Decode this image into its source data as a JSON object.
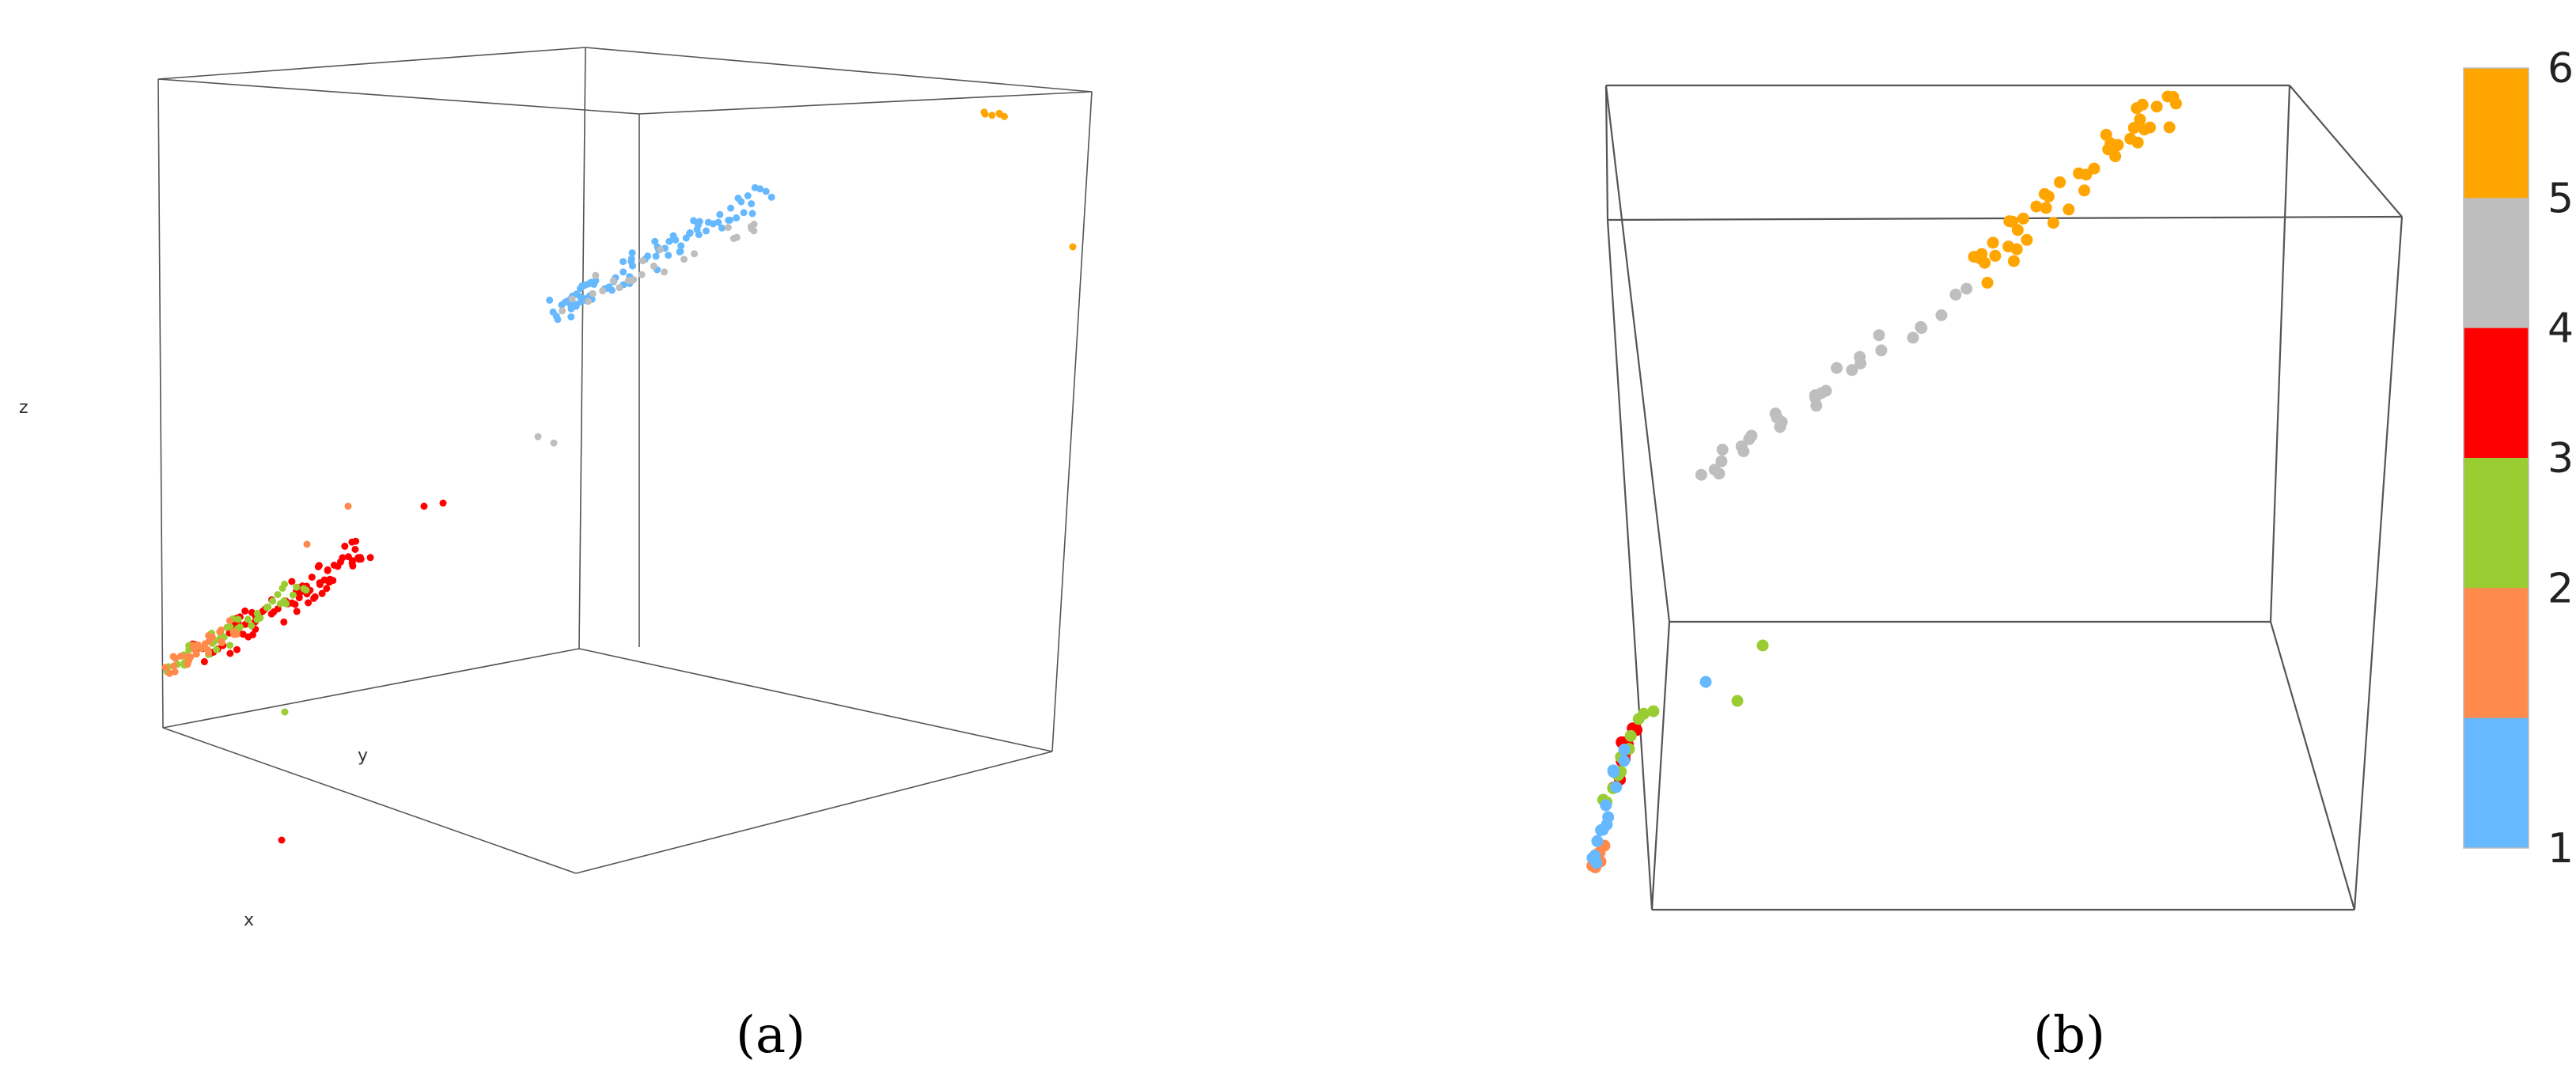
{
  "captions": {
    "a": "(a)",
    "b": "(b)"
  },
  "colors": {
    "class1": "#66B8FF",
    "class2": "#FF8A4C",
    "class3": "#9ACD32",
    "class4": "#FF0000",
    "class5": "#BEBEBE",
    "class6": "#FFA500"
  },
  "chart_data": [
    {
      "type": "scatter",
      "view": "3d",
      "title": "",
      "xlabel": "x",
      "ylabel": "y",
      "zlabel": "z",
      "colorbar": {
        "ticks": [
          "1",
          "2",
          "3",
          "4",
          "5",
          "6"
        ]
      },
      "clusters": [
        {
          "class": 1,
          "x": [
            0.55,
            0.85
          ],
          "y": [
            0.55,
            0.85
          ],
          "z": [
            0.64,
            0.85
          ],
          "n": 90
        },
        {
          "class": 5,
          "x": [
            0.5,
            0.8
          ],
          "y": [
            0.5,
            0.8
          ],
          "z": [
            0.6,
            0.85
          ],
          "n": 25
        },
        {
          "class": 6,
          "x": [
            0.95,
            1.0
          ],
          "y": [
            0.95,
            1.0
          ],
          "z": [
            0.9,
            1.0
          ],
          "n": 6
        },
        {
          "class": 4,
          "x": [
            0.05,
            0.35
          ],
          "y": [
            0.05,
            0.35
          ],
          "z": [
            0.05,
            0.3
          ],
          "n": 90
        },
        {
          "class": 3,
          "x": [
            0.0,
            0.2
          ],
          "y": [
            0.0,
            0.2
          ],
          "z": [
            0.0,
            0.15
          ],
          "n": 50
        },
        {
          "class": 2,
          "x": [
            0.0,
            0.15
          ],
          "y": [
            0.0,
            0.15
          ],
          "z": [
            0.0,
            0.12
          ],
          "n": 30
        }
      ]
    },
    {
      "type": "scatter",
      "view": "3d",
      "title": "",
      "colorbar": {
        "ticks": [
          "1",
          "2",
          "3",
          "4",
          "5",
          "6"
        ]
      },
      "clusters": [
        {
          "class": 6,
          "x": [
            0.55,
            0.92
          ],
          "y": [
            0.55,
            0.92
          ],
          "z": [
            0.65,
            1.0
          ],
          "n": 45
        },
        {
          "class": 5,
          "x": [
            0.3,
            0.6
          ],
          "y": [
            0.3,
            0.6
          ],
          "z": [
            0.35,
            0.68
          ],
          "n": 30
        },
        {
          "class": 4,
          "x": [
            0.0,
            0.1
          ],
          "y": [
            0.0,
            0.1
          ],
          "z": [
            0.0,
            0.12
          ],
          "n": 12
        },
        {
          "class": 3,
          "x": [
            0.0,
            0.12
          ],
          "y": [
            0.0,
            0.12
          ],
          "z": [
            0.0,
            0.2
          ],
          "n": 12
        },
        {
          "class": 2,
          "x": [
            0.0,
            0.06
          ],
          "y": [
            0.0,
            0.06
          ],
          "z": [
            0.0,
            0.06
          ],
          "n": 8
        },
        {
          "class": 1,
          "x": [
            0.0,
            0.08
          ],
          "y": [
            0.0,
            0.08
          ],
          "z": [
            0.0,
            0.1
          ],
          "n": 15
        }
      ]
    }
  ]
}
